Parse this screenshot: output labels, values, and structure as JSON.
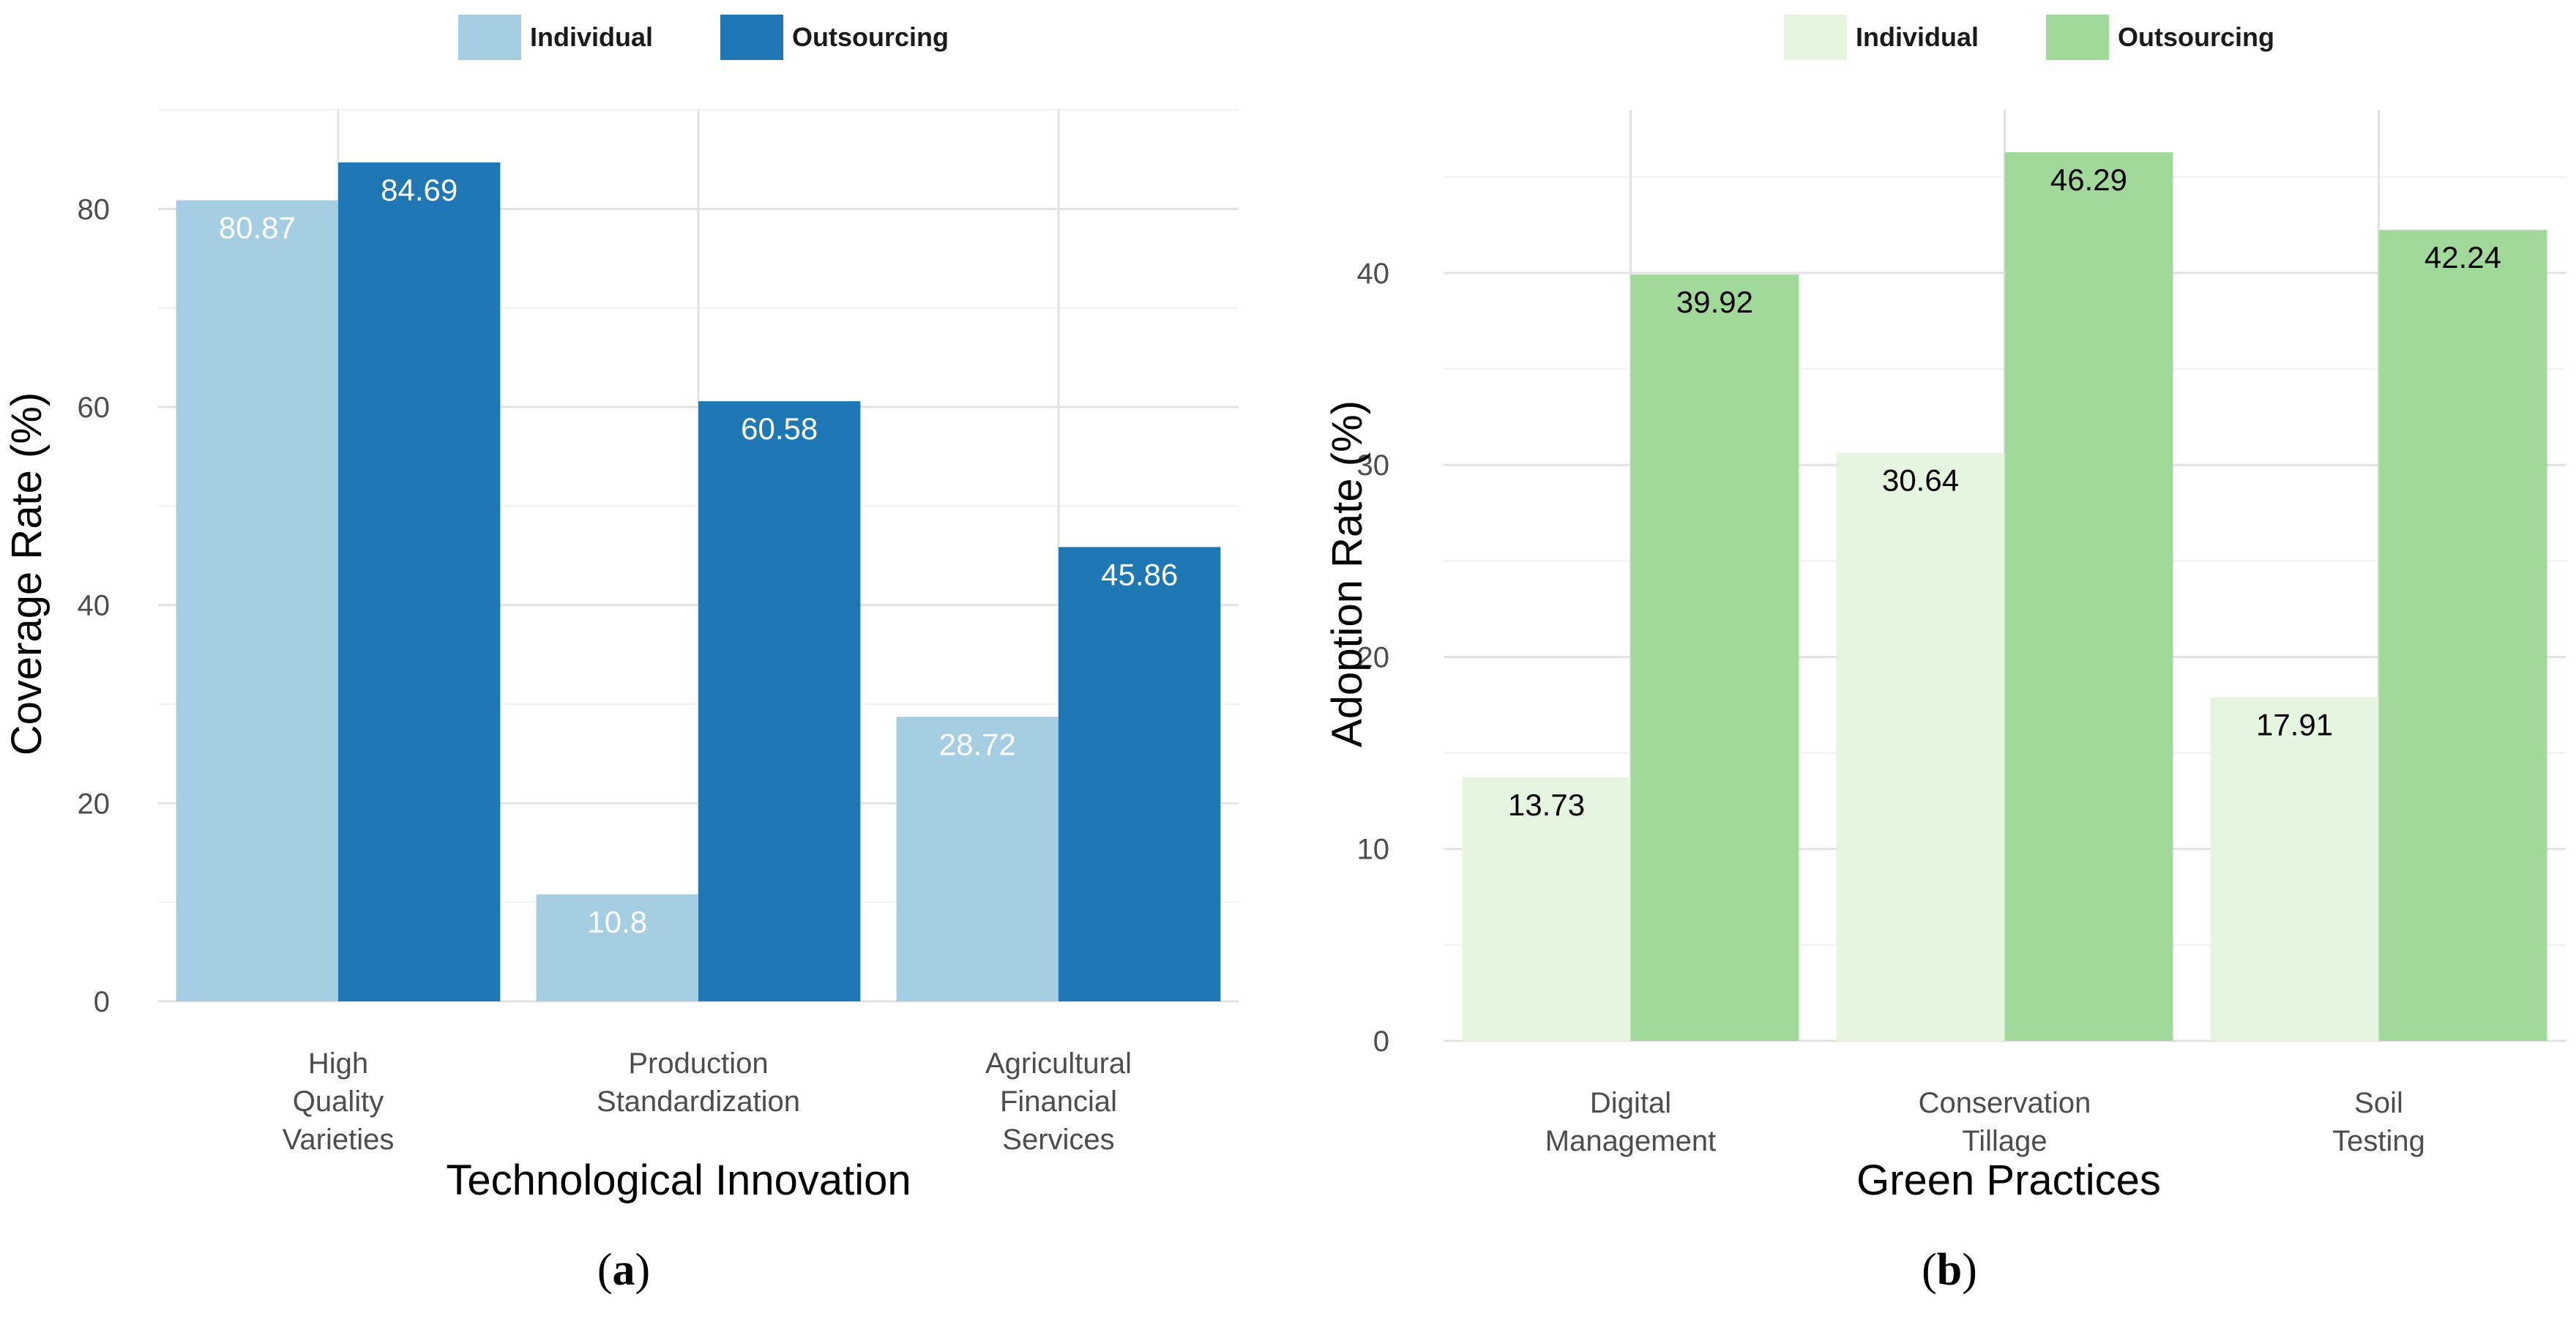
{
  "chart_data": [
    {
      "type": "bar",
      "panel_label": {
        "open": "(",
        "letter": "a",
        "close": ")"
      },
      "categories": [
        [
          "High",
          "Quality",
          "Varieties"
        ],
        [
          "Production",
          "Standardization"
        ],
        [
          "Agricultural",
          "Financial",
          "Services"
        ]
      ],
      "series": [
        {
          "name": "Individual",
          "color": "#a6cee3",
          "label_color": "#ffffff",
          "values": [
            80.87,
            10.8,
            28.72
          ]
        },
        {
          "name": "Outsourcing",
          "color": "#1f78b4",
          "label_color": "#ffffff",
          "values": [
            84.69,
            60.58,
            45.86
          ]
        }
      ],
      "xlabel": "Technological Innovation",
      "ylabel": "Coverage Rate (%)",
      "ylim": [
        0,
        90
      ],
      "yticks": [
        0,
        20,
        40,
        60,
        80
      ],
      "grid": true,
      "legend_position": "top"
    },
    {
      "type": "bar",
      "panel_label": {
        "open": "(",
        "letter": "b",
        "close": ")"
      },
      "categories": [
        [
          "Digital",
          "Management"
        ],
        [
          "Conservation",
          "Tillage"
        ],
        [
          "Soil",
          "Testing"
        ]
      ],
      "series": [
        {
          "name": "Individual",
          "color": "#e5f5e0",
          "label_color": "#000000",
          "values": [
            13.73,
            30.64,
            17.91
          ]
        },
        {
          "name": "Outsourcing",
          "color": "#a1d99b",
          "label_color": "#000000",
          "values": [
            39.92,
            46.29,
            42.24
          ]
        }
      ],
      "xlabel": "Green Practices",
      "ylabel": "Adoption Rate (%)",
      "ylim": [
        0,
        48.5
      ],
      "yticks": [
        0,
        10,
        20,
        30,
        40
      ],
      "grid": true,
      "legend_position": "top"
    }
  ]
}
